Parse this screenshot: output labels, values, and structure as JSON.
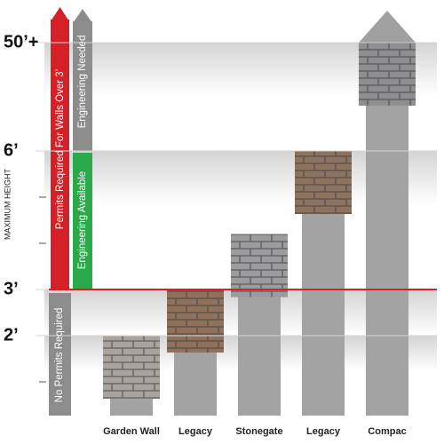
{
  "chart_data": {
    "type": "bar",
    "y_label": "MAXIMUM HEIGHT",
    "categories": [
      "Garden Wall",
      "Legacy",
      "Stonegate",
      "Legacy",
      "Compac"
    ],
    "values": [
      2,
      3,
      4.2,
      6,
      50
    ],
    "colors": [
      "#a9a39d",
      "#8e705c",
      "#9c9c9e",
      "#8b7360",
      "#8f8f91"
    ],
    "ylim": [
      0,
      50
    ],
    "yticks": [
      {
        "value": 2,
        "label": "2’"
      },
      {
        "value": 3,
        "label": "3’"
      },
      {
        "value": 6,
        "label": "6’"
      },
      {
        "value": 50,
        "label": "50’+"
      }
    ],
    "minor_yticks": [
      1,
      4,
      5
    ],
    "annotations": {
      "permits": "Permits Required For Walls Over 3’",
      "engineering_needed": "Engineering Needed",
      "engineering_available": "Engineering Available",
      "no_permits": "No Permits Required"
    }
  }
}
